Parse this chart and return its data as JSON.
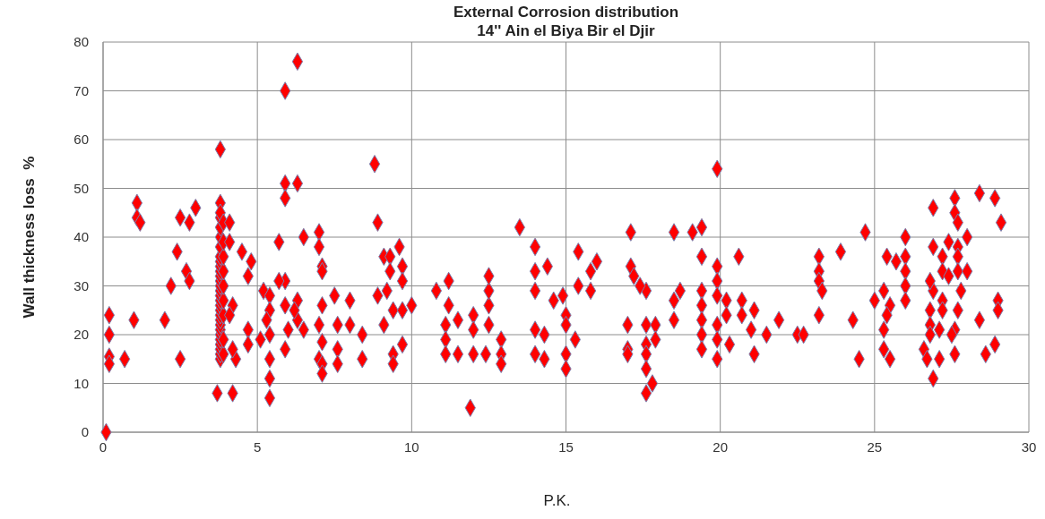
{
  "chart_data": {
    "type": "scatter",
    "title": "External Corrosion distribution",
    "subtitle": "14'' Ain el Biya Bir el Djir",
    "xlabel": "P.K.",
    "ylabel": "Wall thickness loss  %",
    "x": [
      0.1,
      0.2,
      0.2,
      0.2,
      0.2,
      0.7,
      1.1,
      1.1,
      1.2,
      1.0,
      2.0,
      2.2,
      2.4,
      2.5,
      2.5,
      2.7,
      2.8,
      2.8,
      3.0,
      3.8,
      3.8,
      3.7,
      4.2,
      3.8,
      3.8,
      3.8,
      3.8,
      3.8,
      3.8,
      3.8,
      3.8,
      3.8,
      3.8,
      3.8,
      3.8,
      3.8,
      3.8,
      3.8,
      3.8,
      3.8,
      3.8,
      3.8,
      3.8,
      3.8,
      3.8,
      3.8,
      3.8,
      3.8,
      3.8,
      3.8,
      3.9,
      3.9,
      3.9,
      3.9,
      3.9,
      3.9,
      3.9,
      3.9,
      3.9,
      4.1,
      4.1,
      4.2,
      4.3,
      4.2,
      4.1,
      4.5,
      4.8,
      4.7,
      4.7,
      4.7,
      5.2,
      5.4,
      5.4,
      5.4,
      5.4,
      5.4,
      5.4,
      5.1,
      5.3,
      5.9,
      6.3,
      5.9,
      6.3,
      5.9,
      5.7,
      6.5,
      5.9,
      5.7,
      5.9,
      6.3,
      6.3,
      6.5,
      5.9,
      6.0,
      6.2,
      7.0,
      7.0,
      7.1,
      7.1,
      7.1,
      7.0,
      7.1,
      7.0,
      7.1,
      7.1,
      7.5,
      7.6,
      7.6,
      7.6,
      8.0,
      8.0,
      8.4,
      8.4,
      8.8,
      8.9,
      8.9,
      9.1,
      9.1,
      9.3,
      9.6,
      9.7,
      9.7,
      9.4,
      9.7,
      9.4,
      9.4,
      9.7,
      10.0,
      9.3,
      9.2,
      10.8,
      11.2,
      11.2,
      11.1,
      11.1,
      11.1,
      11.5,
      11.5,
      11.9,
      12.0,
      12.0,
      12.0,
      12.4,
      12.5,
      12.5,
      12.5,
      12.5,
      12.9,
      12.9,
      12.9,
      13.5,
      14.0,
      14.0,
      14.4,
      14.0,
      14.6,
      14.0,
      14.3,
      14.0,
      14.3,
      14.9,
      15.0,
      15.0,
      15.3,
      15.0,
      15.0,
      15.4,
      15.4,
      15.8,
      16.0,
      15.8,
      17.1,
      17.1,
      17.2,
      17.6,
      17.4,
      17.0,
      17.0,
      17.0,
      17.6,
      17.6,
      17.6,
      17.6,
      17.8,
      17.6,
      17.9,
      17.9,
      18.5,
      18.5,
      18.5,
      18.7,
      19.1,
      19.4,
      19.4,
      19.4,
      19.4,
      19.4,
      19.4,
      19.4,
      19.9,
      19.9,
      19.9,
      19.9,
      19.9,
      19.9,
      19.9,
      20.2,
      20.2,
      20.3,
      20.6,
      20.7,
      20.7,
      21.1,
      21.0,
      21.1,
      21.5,
      21.9,
      22.5,
      22.7,
      23.2,
      23.2,
      23.2,
      23.3,
      23.2,
      23.9,
      24.3,
      24.5,
      24.7,
      25.0,
      25.3,
      25.4,
      25.5,
      25.4,
      25.3,
      25.3,
      25.5,
      26.0,
      26.0,
      26.0,
      26.0,
      26.0,
      25.7,
      26.9,
      26.9,
      26.9,
      26.8,
      26.8,
      26.6,
      26.7,
      26.9,
      26.8,
      27.1,
      27.1,
      27.2,
      27.2,
      27.2,
      27.4,
      27.6,
      27.6,
      27.7,
      27.7,
      27.7,
      27.7,
      27.8,
      27.7,
      27.6,
      27.6,
      27.5,
      28.0,
      28.0,
      28.4,
      28.4,
      28.6,
      28.9,
      29.1,
      29.0,
      29.0,
      28.9,
      27.4,
      27.2,
      26.8
    ],
    "values": [
      0,
      24,
      20,
      15.5,
      14,
      15,
      47,
      44,
      43,
      23,
      23,
      30,
      37,
      15,
      44,
      33,
      31,
      43,
      46,
      58,
      47,
      8,
      8,
      15,
      16,
      17,
      18,
      19,
      20,
      21,
      22,
      23,
      24,
      25,
      26,
      27,
      28,
      29,
      30,
      31,
      32,
      33,
      34,
      35,
      36,
      38,
      40,
      42,
      44,
      45,
      16,
      19,
      24,
      27,
      30,
      33,
      36,
      39,
      43,
      43,
      39,
      26,
      15,
      17,
      24,
      37,
      35,
      32,
      21,
      18,
      29,
      28,
      25,
      20,
      15,
      11,
      7,
      19,
      23,
      70,
      76,
      51,
      51,
      48,
      39,
      40,
      31,
      31,
      26,
      27,
      23,
      21,
      17,
      21,
      25,
      41,
      38,
      34,
      33,
      26,
      22,
      18.5,
      15,
      14,
      12,
      28,
      22,
      17,
      14,
      27,
      22,
      20,
      15,
      55,
      43,
      28,
      22,
      36,
      36,
      38,
      34,
      31,
      25,
      25,
      16,
      14,
      18,
      26,
      33,
      29,
      29,
      31,
      26,
      22,
      19,
      16,
      23,
      16,
      5,
      24,
      21,
      16,
      16,
      22,
      26,
      29,
      32,
      19,
      16,
      14,
      42,
      38,
      33,
      34,
      29,
      27,
      21,
      20,
      16,
      15,
      28,
      24,
      22,
      19,
      16,
      13,
      37,
      30,
      33,
      35,
      29,
      41,
      34,
      32,
      29,
      30,
      22,
      17,
      16,
      22,
      18,
      16,
      13,
      10,
      8,
      22,
      19,
      41,
      23,
      27,
      29,
      41,
      42,
      36,
      29,
      26,
      23,
      20,
      17,
      54,
      34,
      31,
      28,
      22,
      19,
      15,
      27,
      24,
      18,
      36,
      27,
      24,
      25,
      21,
      16,
      20,
      23,
      20,
      20,
      36,
      33,
      31,
      29,
      24,
      37,
      23,
      15,
      41,
      27,
      29,
      36,
      26,
      24,
      21,
      17,
      15,
      40,
      36,
      33,
      30,
      27,
      35,
      46,
      38,
      29,
      25,
      22,
      17,
      15,
      11,
      20,
      21,
      15,
      36,
      33,
      27,
      39,
      48,
      45,
      43,
      38,
      36,
      33,
      29,
      25,
      21,
      16,
      20,
      40,
      33,
      49,
      23,
      16,
      48,
      43,
      27,
      25,
      18,
      32,
      25,
      31
    ],
    "color": "#ff0000",
    "marker": "diamond",
    "xlim": [
      0,
      30
    ],
    "xticks": [
      0,
      5,
      10,
      15,
      20,
      25,
      30
    ],
    "ylim": [
      0,
      80
    ],
    "yticks": [
      0,
      10,
      20,
      30,
      40,
      50,
      60,
      70,
      80
    ],
    "grid": true
  }
}
